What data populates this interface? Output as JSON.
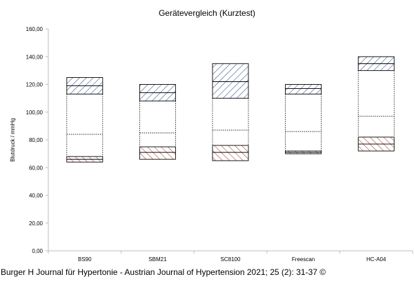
{
  "caption": "Burger H Journal für Hypertonie - Austrian Journal of Hypertension 2021; 25 (2): 31-37 ©",
  "chart_data": {
    "type": "floating-box",
    "title": "Gerätevergleich (Kurztest)",
    "xlabel": "",
    "ylabel": "Blutdruck / mmHg",
    "ylim": [
      0,
      160
    ],
    "yticks": [
      "0,00",
      "20,00",
      "40,00",
      "60,00",
      "80,00",
      "100,00",
      "120,00",
      "140,00",
      "160,00"
    ],
    "grid": false,
    "categories": [
      "BS90",
      "SBM21",
      "SC8100",
      "Freescan",
      "HC-A04"
    ],
    "systolic_min": [
      113,
      108,
      110,
      113,
      130
    ],
    "systolic_mean": [
      119,
      114,
      122,
      117,
      135
    ],
    "systolic_max": [
      125,
      120,
      135,
      120,
      140
    ],
    "middle_mean": [
      84,
      85,
      87,
      86,
      97
    ],
    "diastolic_min": [
      64,
      66,
      65,
      70,
      72
    ],
    "diastolic_mean": [
      66,
      71,
      71,
      71,
      77
    ],
    "diastolic_max": [
      68,
      75,
      76,
      72,
      82
    ],
    "colors": {
      "systolic": "#3b5a8a",
      "diastolic": "#b0473a",
      "axis": "#bdbdbd"
    }
  }
}
